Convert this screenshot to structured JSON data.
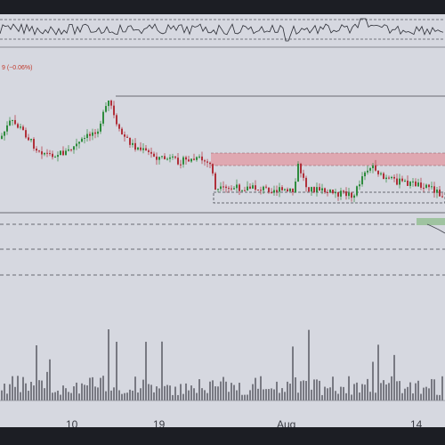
{
  "header": {
    "change_label": "9 (−0.06%)"
  },
  "xaxis": {
    "ticks": [
      "10",
      "19",
      "Aug",
      "14"
    ]
  },
  "colors": {
    "background": "#d6d8e0",
    "up_candle": "#2e8b3d",
    "down_candle": "#b0303a",
    "supply_zone": "#e0a0a8",
    "demand_zone": "#9fc3a0",
    "volume": "#3a3a42",
    "border": "#1c1e24"
  },
  "icons": {
    "chart": "candlestick-chart",
    "oscillator": "oscillator-pane"
  }
}
